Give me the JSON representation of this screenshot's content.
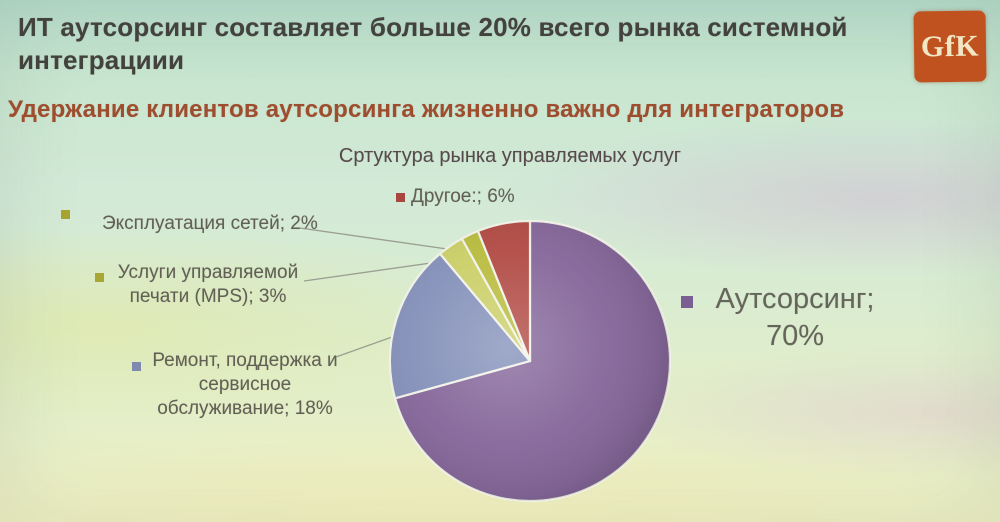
{
  "slide": {
    "title": "ИТ аутсорсинг составляет больше 20% всего рынка системной интеграциии",
    "subtitle": "Удержание клиентов аутсорсинга жизненно важно для интеграторов",
    "logo": {
      "text": "GfK",
      "color": "#c0521f"
    }
  },
  "chart_data": {
    "type": "pie",
    "title": "Сртуктура рынка управляемых услуг",
    "legend_position": "callouts",
    "start_angle": 0,
    "segments": [
      {
        "label": "Аутсорсинг",
        "value": 70,
        "color": "#86689b",
        "marker": "#7a5f92"
      },
      {
        "label": "Ремонт, поддержка и сервисное обслуживание",
        "value": 18,
        "color": "#8591ba",
        "marker": "#7f8aae"
      },
      {
        "label": "Услуги управляемой печати (MPS)",
        "value": 3,
        "color": "#cbcf68",
        "marker": "#a8a634"
      },
      {
        "label": "Эксплуатация сетей",
        "value": 2,
        "color": "#b9bc3f",
        "marker": "#a8a22e"
      },
      {
        "label": "Другое:",
        "value": 6,
        "color": "#b24b45",
        "marker": "#a84740"
      }
    ],
    "callouts": {
      "other": {
        "lines": [
          "Другое:; 6%"
        ]
      },
      "networks": {
        "lines": [
          "Эксплуатация сетей; 2%"
        ]
      },
      "mps": {
        "lines": [
          "Услуги управляемой",
          "печати (MPS); 3%"
        ]
      },
      "repair": {
        "lines": [
          "Ремонт, поддержка и",
          "сервисное",
          "обслуживание;  18%"
        ]
      },
      "outsourcing": {
        "lines": [
          "Аутсорсинг;",
          "70%"
        ]
      }
    }
  }
}
